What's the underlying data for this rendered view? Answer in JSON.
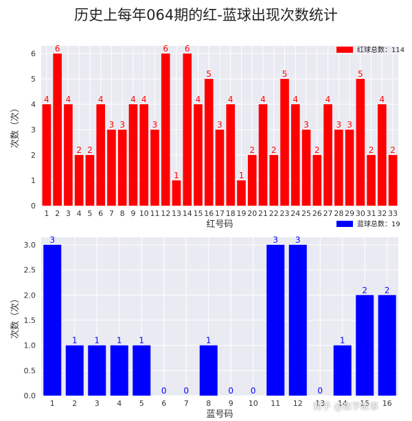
{
  "title": "历史上每年064期的红-蓝球出现次数统计",
  "watermark": "知乎 @数字故事",
  "chart_data": [
    {
      "type": "bar",
      "categories": [
        "1",
        "2",
        "3",
        "4",
        "5",
        "6",
        "7",
        "8",
        "9",
        "10",
        "11",
        "12",
        "13",
        "14",
        "15",
        "16",
        "17",
        "18",
        "19",
        "20",
        "21",
        "22",
        "23",
        "24",
        "25",
        "26",
        "27",
        "28",
        "29",
        "30",
        "31",
        "32",
        "33"
      ],
      "values": [
        4,
        6,
        4,
        2,
        2,
        4,
        3,
        3,
        4,
        4,
        3,
        6,
        1,
        6,
        4,
        5,
        3,
        4,
        1,
        2,
        4,
        2,
        5,
        4,
        3,
        2,
        4,
        3,
        3,
        5,
        2,
        4,
        2
      ],
      "xlabel": "红号码",
      "ylabel": "次数（次）",
      "ylim": [
        0,
        6.3
      ],
      "yticks": [
        "0",
        "1",
        "2",
        "3",
        "4",
        "5",
        "6"
      ],
      "legend": "红球总数：114",
      "legend_position": "top-right",
      "color": "#ff0000",
      "grid": true
    },
    {
      "type": "bar",
      "categories": [
        "1",
        "2",
        "3",
        "4",
        "5",
        "6",
        "7",
        "8",
        "9",
        "10",
        "11",
        "12",
        "13",
        "14",
        "15",
        "16"
      ],
      "values": [
        3,
        1,
        1,
        1,
        1,
        0,
        0,
        1,
        0,
        0,
        3,
        3,
        0,
        1,
        2,
        2
      ],
      "xlabel": "蓝号码",
      "ylabel": "次数（次）",
      "ylim": [
        0,
        3.15
      ],
      "yticks": [
        "0.0",
        "0.5",
        "1.0",
        "1.5",
        "2.0",
        "2.5",
        "3.0"
      ],
      "legend": "蓝球总数：19",
      "legend_position": "top-right",
      "color": "#0000ff",
      "grid": true
    }
  ]
}
